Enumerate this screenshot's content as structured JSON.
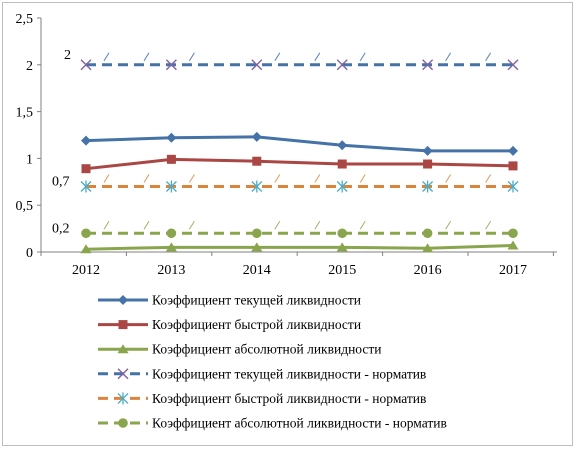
{
  "chart_data": {
    "type": "line",
    "title": "",
    "xlabel": "",
    "ylabel": "",
    "categories": [
      "2012",
      "2013",
      "2014",
      "2015",
      "2016",
      "2017"
    ],
    "y_ticks": [
      "0",
      "0,5",
      "1",
      "1,5",
      "2",
      "2,5"
    ],
    "ylim": [
      0,
      2.5
    ],
    "grid": false,
    "legend_position": "bottom",
    "series": [
      {
        "name": "Коэффициент текущей ликвидности",
        "values": [
          1.19,
          1.22,
          1.23,
          1.14,
          1.08,
          1.08
        ],
        "color": "#4572A7",
        "marker": "diamond",
        "dashed": false
      },
      {
        "name": "Коэффициент быстрой ликвидности",
        "values": [
          0.89,
          0.99,
          0.97,
          0.94,
          0.94,
          0.92
        ],
        "color": "#AA4643",
        "marker": "square",
        "dashed": false
      },
      {
        "name": "Коэффициент абсолютной ликвидности",
        "values": [
          0.03,
          0.05,
          0.05,
          0.05,
          0.04,
          0.07
        ],
        "color": "#89A54E",
        "marker": "triangle",
        "dashed": false
      },
      {
        "name": "Коэффициент текущей ликвидности - норматив",
        "values": [
          2,
          2,
          2,
          2,
          2,
          2
        ],
        "color": "#4572A7",
        "marker": "x",
        "dashed": true
      },
      {
        "name": "Коэффициент быстрой ликвидности - норматив",
        "values": [
          0.7,
          0.7,
          0.7,
          0.7,
          0.7,
          0.7
        ],
        "color": "#DB843D",
        "marker": "star",
        "dashed": true
      },
      {
        "name": "Коэффициент абсолютной ликвидности - норматив",
        "values": [
          0.2,
          0.2,
          0.2,
          0.2,
          0.2,
          0.2
        ],
        "color": "#89A54E",
        "marker": "circle",
        "dashed": true
      }
    ],
    "annotations": [
      {
        "text": "2",
        "value": 2
      },
      {
        "text": "0,7",
        "value": 0.7
      },
      {
        "text": "0,2",
        "value": 0.2
      }
    ]
  }
}
